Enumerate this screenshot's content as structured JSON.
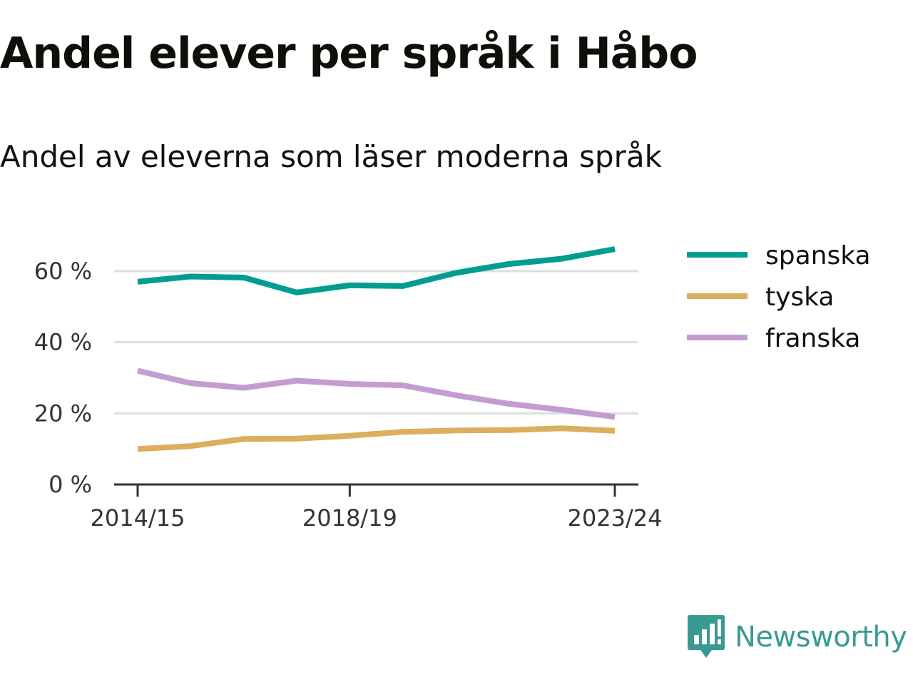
{
  "title": "Andel elever per språk i Håbo",
  "subtitle": "Andel av eleverna som läser moderna språk",
  "brand": {
    "name": "Newsworthy",
    "color": "#3a9a92",
    "icon": "newsworthy-logo-icon"
  },
  "chart_data": {
    "type": "line",
    "x": [
      "2014/15",
      "2015/16",
      "2016/17",
      "2017/18",
      "2018/19",
      "2019/20",
      "2020/21",
      "2021/22",
      "2022/23",
      "2023/24"
    ],
    "x_tick_labels": [
      "2014/15",
      "2018/19",
      "2023/24"
    ],
    "ylim": [
      0,
      66
    ],
    "y_ticks": [
      0,
      20,
      40,
      60
    ],
    "y_tick_labels": [
      "0 %",
      "20 %",
      "40 %",
      "60 %"
    ],
    "grid": true,
    "legend_position": "right",
    "series": [
      {
        "name": "spanska",
        "color": "#009e8f",
        "values": [
          57,
          58.5,
          58.2,
          54,
          56,
          55.8,
          59.5,
          62,
          63.5,
          66.2
        ]
      },
      {
        "name": "tyska",
        "color": "#dcae5e",
        "values": [
          10,
          10.8,
          12.8,
          12.9,
          13.7,
          14.8,
          15.2,
          15.3,
          15.8,
          15.1
        ]
      },
      {
        "name": "franska",
        "color": "#c59cd0",
        "values": [
          32,
          28.5,
          27.2,
          29.2,
          28.3,
          27.9,
          25.1,
          22.7,
          21,
          19
        ]
      }
    ]
  }
}
